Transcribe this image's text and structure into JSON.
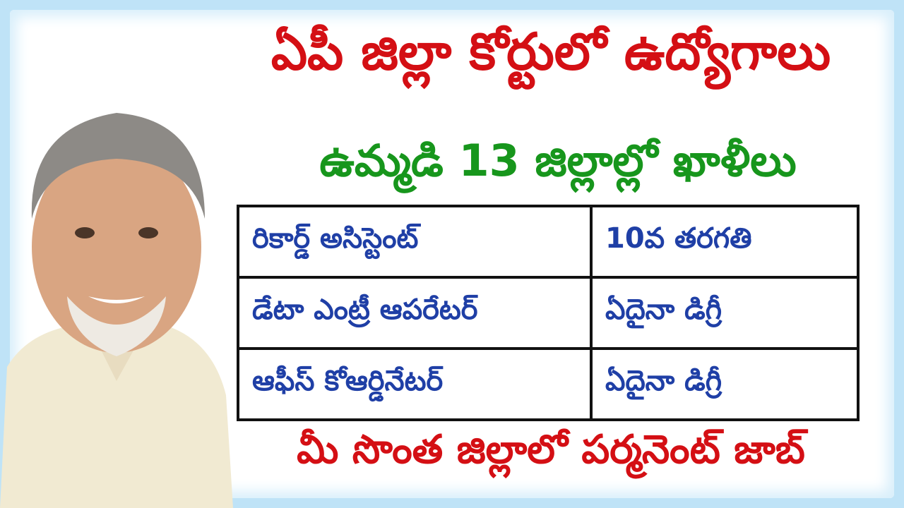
{
  "title": "ఏపీ జిల్లా కోర్టులో ఉద్యోగాలు",
  "subtitle": "ఉమ్మడి 13 జిల్లాల్లో ఖాళీలు",
  "table": {
    "rows": [
      {
        "post": "రికార్డ్ అసిస్టెంట్",
        "qualification": "10వ తరగతి"
      },
      {
        "post": "డేటా ఎంట్రీ ఆపరేటర్",
        "qualification": "ఏదైనా డిగ్రీ"
      },
      {
        "post": "ఆఫీస్ కోఆర్డినేటర్",
        "qualification": "ఏదైనా డిగ్రీ"
      }
    ]
  },
  "footer": "మీ సొంత జిల్లాలో పర్మనెంట్ జాబ్",
  "colors": {
    "title": "#d40f14",
    "subtitle": "#17961c",
    "table_text": "#1f3fa6",
    "border": "#bfe3f7"
  }
}
